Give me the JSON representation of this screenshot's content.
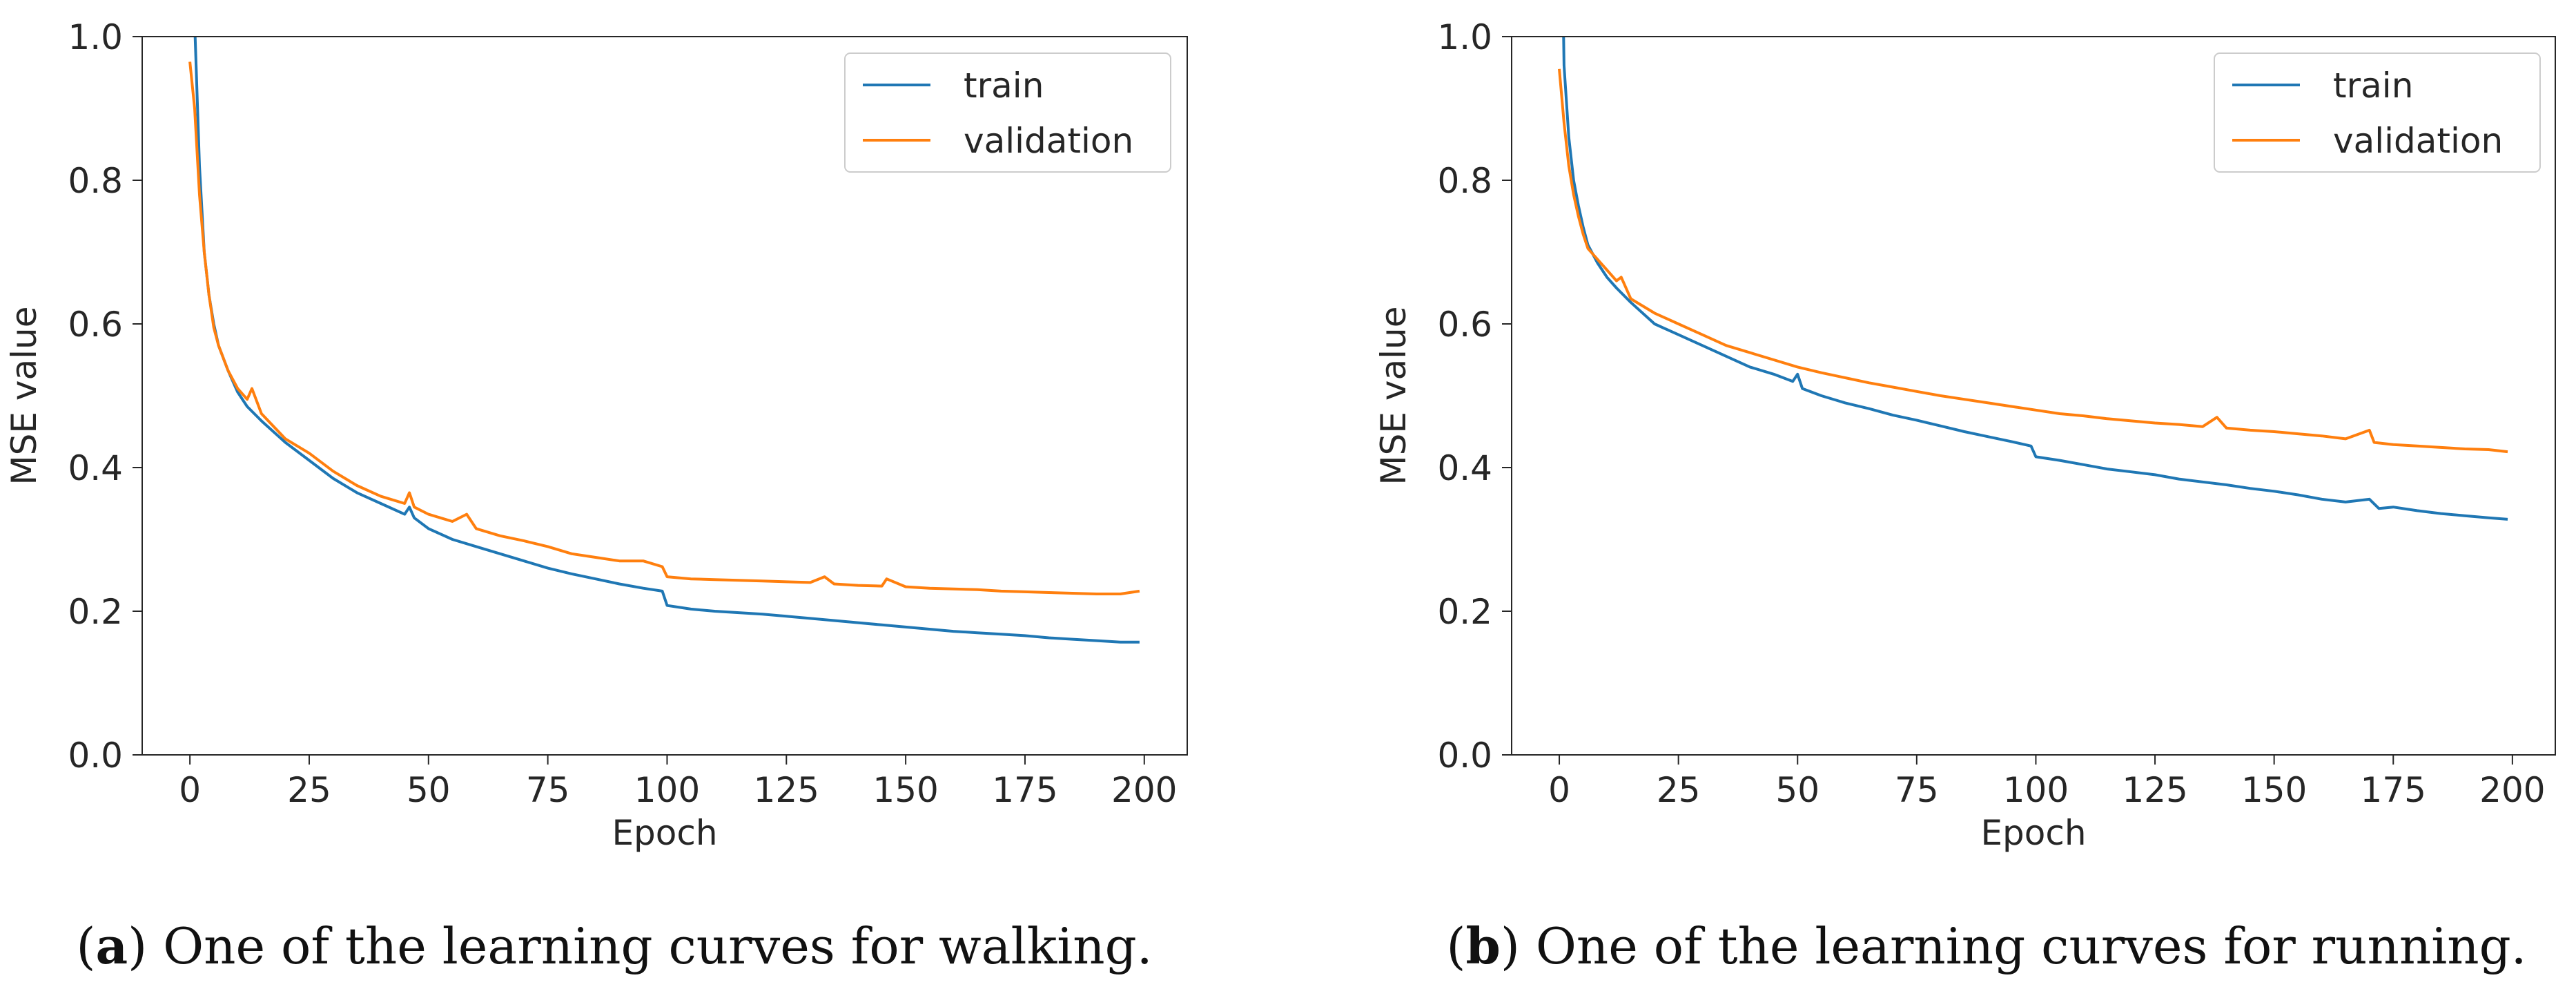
{
  "chart_data": [
    {
      "type": "line",
      "panel": "a",
      "title": "",
      "caption": {
        "letter": "a",
        "text": " One of the learning curves for walking."
      },
      "xlabel": "Epoch",
      "ylabel": "MSE value",
      "xlim": [
        -10,
        209
      ],
      "ylim": [
        0,
        1
      ],
      "xticks": [
        0,
        25,
        50,
        75,
        100,
        125,
        150,
        175,
        200
      ],
      "yticks": [
        "0.0",
        "0.2",
        "0.4",
        "0.6",
        "0.8",
        "1.0"
      ],
      "legend_position": "top-right",
      "grid": false,
      "series": [
        {
          "name": "train",
          "color": "#1f77b4",
          "points": [
            [
              0,
              1.35
            ],
            [
              1,
              1.02
            ],
            [
              2,
              0.82
            ],
            [
              3,
              0.7
            ],
            [
              4,
              0.64
            ],
            [
              5,
              0.6
            ],
            [
              6,
              0.57
            ],
            [
              8,
              0.535
            ],
            [
              10,
              0.505
            ],
            [
              12,
              0.485
            ],
            [
              15,
              0.465
            ],
            [
              20,
              0.435
            ],
            [
              25,
              0.41
            ],
            [
              30,
              0.385
            ],
            [
              35,
              0.365
            ],
            [
              40,
              0.35
            ],
            [
              45,
              0.335
            ],
            [
              46,
              0.345
            ],
            [
              47,
              0.33
            ],
            [
              50,
              0.315
            ],
            [
              55,
              0.3
            ],
            [
              60,
              0.29
            ],
            [
              65,
              0.28
            ],
            [
              70,
              0.27
            ],
            [
              75,
              0.26
            ],
            [
              80,
              0.252
            ],
            [
              85,
              0.245
            ],
            [
              90,
              0.238
            ],
            [
              95,
              0.232
            ],
            [
              99,
              0.228
            ],
            [
              100,
              0.208
            ],
            [
              105,
              0.203
            ],
            [
              110,
              0.2
            ],
            [
              115,
              0.198
            ],
            [
              120,
              0.196
            ],
            [
              125,
              0.193
            ],
            [
              130,
              0.19
            ],
            [
              135,
              0.187
            ],
            [
              140,
              0.184
            ],
            [
              145,
              0.181
            ],
            [
              150,
              0.178
            ],
            [
              155,
              0.175
            ],
            [
              160,
              0.172
            ],
            [
              165,
              0.17
            ],
            [
              170,
              0.168
            ],
            [
              175,
              0.166
            ],
            [
              180,
              0.163
            ],
            [
              185,
              0.161
            ],
            [
              190,
              0.159
            ],
            [
              195,
              0.157
            ],
            [
              199,
              0.157
            ]
          ]
        },
        {
          "name": "validation",
          "color": "#ff7f0e",
          "points": [
            [
              0,
              0.965
            ],
            [
              1,
              0.9
            ],
            [
              2,
              0.78
            ],
            [
              3,
              0.7
            ],
            [
              4,
              0.64
            ],
            [
              5,
              0.595
            ],
            [
              6,
              0.57
            ],
            [
              8,
              0.535
            ],
            [
              10,
              0.51
            ],
            [
              12,
              0.495
            ],
            [
              13,
              0.51
            ],
            [
              15,
              0.475
            ],
            [
              20,
              0.44
            ],
            [
              25,
              0.42
            ],
            [
              30,
              0.395
            ],
            [
              35,
              0.375
            ],
            [
              40,
              0.36
            ],
            [
              45,
              0.35
            ],
            [
              46,
              0.365
            ],
            [
              47,
              0.345
            ],
            [
              50,
              0.335
            ],
            [
              55,
              0.325
            ],
            [
              58,
              0.335
            ],
            [
              60,
              0.315
            ],
            [
              65,
              0.305
            ],
            [
              70,
              0.298
            ],
            [
              75,
              0.29
            ],
            [
              80,
              0.28
            ],
            [
              85,
              0.275
            ],
            [
              90,
              0.27
            ],
            [
              95,
              0.27
            ],
            [
              99,
              0.262
            ],
            [
              100,
              0.248
            ],
            [
              105,
              0.245
            ],
            [
              110,
              0.244
            ],
            [
              115,
              0.243
            ],
            [
              120,
              0.242
            ],
            [
              125,
              0.241
            ],
            [
              130,
              0.24
            ],
            [
              133,
              0.248
            ],
            [
              135,
              0.238
            ],
            [
              140,
              0.236
            ],
            [
              145,
              0.235
            ],
            [
              146,
              0.245
            ],
            [
              150,
              0.234
            ],
            [
              155,
              0.232
            ],
            [
              160,
              0.231
            ],
            [
              165,
              0.23
            ],
            [
              170,
              0.228
            ],
            [
              175,
              0.227
            ],
            [
              180,
              0.226
            ],
            [
              185,
              0.225
            ],
            [
              190,
              0.224
            ],
            [
              195,
              0.224
            ],
            [
              199,
              0.228
            ]
          ]
        }
      ]
    },
    {
      "type": "line",
      "panel": "b",
      "title": "",
      "caption": {
        "letter": "b",
        "text": " One of the learning curves for running."
      },
      "xlabel": "Epoch",
      "ylabel": "MSE value",
      "xlim": [
        -10,
        209
      ],
      "ylim": [
        0,
        1
      ],
      "xticks": [
        0,
        25,
        50,
        75,
        100,
        125,
        150,
        175,
        200
      ],
      "yticks": [
        "0.0",
        "0.2",
        "0.4",
        "0.6",
        "0.8",
        "1.0"
      ],
      "legend_position": "top-right",
      "grid": false,
      "series": [
        {
          "name": "train",
          "color": "#1f77b4",
          "points": [
            [
              0,
              1.4
            ],
            [
              1,
              0.96
            ],
            [
              2,
              0.86
            ],
            [
              3,
              0.8
            ],
            [
              4,
              0.765
            ],
            [
              5,
              0.735
            ],
            [
              6,
              0.71
            ],
            [
              8,
              0.685
            ],
            [
              10,
              0.665
            ],
            [
              12,
              0.65
            ],
            [
              15,
              0.63
            ],
            [
              20,
              0.6
            ],
            [
              25,
              0.585
            ],
            [
              30,
              0.57
            ],
            [
              35,
              0.555
            ],
            [
              40,
              0.54
            ],
            [
              45,
              0.53
            ],
            [
              49,
              0.52
            ],
            [
              50,
              0.53
            ],
            [
              51,
              0.51
            ],
            [
              55,
              0.5
            ],
            [
              60,
              0.49
            ],
            [
              65,
              0.482
            ],
            [
              70,
              0.473
            ],
            [
              75,
              0.466
            ],
            [
              80,
              0.458
            ],
            [
              85,
              0.45
            ],
            [
              90,
              0.443
            ],
            [
              95,
              0.436
            ],
            [
              99,
              0.43
            ],
            [
              100,
              0.415
            ],
            [
              105,
              0.41
            ],
            [
              110,
              0.404
            ],
            [
              115,
              0.398
            ],
            [
              120,
              0.394
            ],
            [
              125,
              0.39
            ],
            [
              130,
              0.384
            ],
            [
              135,
              0.38
            ],
            [
              140,
              0.376
            ],
            [
              145,
              0.371
            ],
            [
              150,
              0.367
            ],
            [
              155,
              0.362
            ],
            [
              160,
              0.356
            ],
            [
              165,
              0.352
            ],
            [
              170,
              0.356
            ],
            [
              172,
              0.343
            ],
            [
              175,
              0.345
            ],
            [
              180,
              0.34
            ],
            [
              185,
              0.336
            ],
            [
              190,
              0.333
            ],
            [
              195,
              0.33
            ],
            [
              199,
              0.328
            ]
          ]
        },
        {
          "name": "validation",
          "color": "#ff7f0e",
          "points": [
            [
              0,
              0.955
            ],
            [
              1,
              0.88
            ],
            [
              2,
              0.82
            ],
            [
              3,
              0.78
            ],
            [
              4,
              0.75
            ],
            [
              5,
              0.725
            ],
            [
              6,
              0.705
            ],
            [
              8,
              0.69
            ],
            [
              10,
              0.675
            ],
            [
              12,
              0.66
            ],
            [
              13,
              0.665
            ],
            [
              15,
              0.635
            ],
            [
              20,
              0.615
            ],
            [
              25,
              0.6
            ],
            [
              30,
              0.585
            ],
            [
              35,
              0.57
            ],
            [
              40,
              0.56
            ],
            [
              45,
              0.55
            ],
            [
              50,
              0.54
            ],
            [
              55,
              0.532
            ],
            [
              60,
              0.525
            ],
            [
              65,
              0.518
            ],
            [
              70,
              0.512
            ],
            [
              75,
              0.506
            ],
            [
              80,
              0.5
            ],
            [
              85,
              0.495
            ],
            [
              90,
              0.49
            ],
            [
              95,
              0.485
            ],
            [
              100,
              0.48
            ],
            [
              105,
              0.475
            ],
            [
              110,
              0.472
            ],
            [
              115,
              0.468
            ],
            [
              120,
              0.465
            ],
            [
              125,
              0.462
            ],
            [
              130,
              0.46
            ],
            [
              135,
              0.457
            ],
            [
              138,
              0.47
            ],
            [
              140,
              0.455
            ],
            [
              145,
              0.452
            ],
            [
              150,
              0.45
            ],
            [
              155,
              0.447
            ],
            [
              160,
              0.444
            ],
            [
              165,
              0.44
            ],
            [
              170,
              0.452
            ],
            [
              171,
              0.435
            ],
            [
              175,
              0.432
            ],
            [
              180,
              0.43
            ],
            [
              185,
              0.428
            ],
            [
              190,
              0.426
            ],
            [
              195,
              0.425
            ],
            [
              199,
              0.422
            ]
          ]
        }
      ]
    }
  ]
}
